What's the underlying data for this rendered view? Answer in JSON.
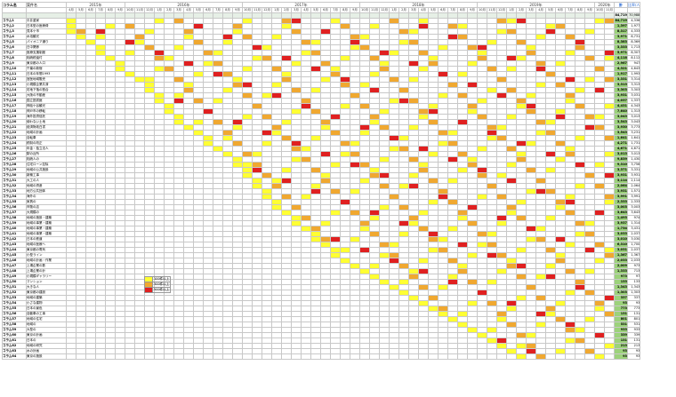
{
  "headers": {
    "code": "コラム名",
    "name": "案件名",
    "total": "計",
    "ratio": "比率/人"
  },
  "years": [
    {
      "label": "2015年",
      "span": 6
    },
    {
      "label": "2016年",
      "span": 12
    },
    {
      "label": "2017年",
      "span": 12
    },
    {
      "label": "2018年",
      "span": 12
    },
    {
      "label": "2019年",
      "span": 12
    },
    {
      "label": "2020年",
      "span": 2
    }
  ],
  "months": [
    "4月",
    "5月",
    "6月",
    "7月",
    "8月",
    "9月",
    "10月",
    "11月",
    "12月",
    "1月",
    "2月",
    "3月",
    "4月",
    "5月",
    "6月",
    "7月",
    "8月",
    "9月",
    "10月",
    "11月",
    "12月",
    "1月",
    "2月",
    "3月",
    "4月",
    "5月",
    "6月",
    "7月",
    "8月",
    "9月",
    "10月",
    "11月",
    "12月",
    "1月",
    "2月",
    "3月",
    "4月",
    "5月",
    "6月",
    "7月",
    "8月",
    "9月",
    "10月",
    "11月",
    "12月",
    "1月",
    "2月",
    "3月",
    "4月",
    "5月",
    "6月",
    "7月",
    "8月",
    "9月",
    "10月",
    "11月"
  ],
  "total_row": {
    "label": "",
    "total": "84,719",
    "ratio": "70,988"
  },
  "rows": [
    {
      "code": "コラム1",
      "name": "平井重家",
      "total": "84,719",
      "ratio": "4,336",
      "start": 0
    },
    {
      "code": "コラム2",
      "name": "日本型の医療費",
      "total": "1,397",
      "ratio": "1,977",
      "start": 0
    },
    {
      "code": "コラム3",
      "name": "見本ケ市",
      "total": "8,317",
      "ratio": "4,333",
      "start": 0
    },
    {
      "code": "コラム4",
      "name": "水泡観光",
      "total": "3,971",
      "ratio": "8,731",
      "start": 1
    },
    {
      "code": "コラム5",
      "name": "パイオニア通り",
      "total": "8,383",
      "ratio": "8,369",
      "start": 2
    },
    {
      "code": "コラム6",
      "name": "日中関係",
      "total": "3,333",
      "ratio": "1,713",
      "start": 3
    },
    {
      "code": "コラム7",
      "name": "医療支援制度",
      "total": "5,971",
      "ratio": "8,307",
      "start": 3
    },
    {
      "code": "コラム8",
      "name": "相続税還付",
      "total": "4,118",
      "ratio": "8,112",
      "start": 4
    },
    {
      "code": "コラム9",
      "name": "東京都の人口",
      "total": "2,967",
      "ratio": "947",
      "start": 5
    },
    {
      "code": "コラム10",
      "name": "千葉の新宿",
      "total": "4,321",
      "ratio": "4,643",
      "start": 5
    },
    {
      "code": "コラム11",
      "name": "日本の年間1993",
      "total": "1,917",
      "ratio": "1,993",
      "start": 6
    },
    {
      "code": "コラム12",
      "name": "宮医地域販売",
      "total": "3,331",
      "ratio": "3,314",
      "start": 7
    },
    {
      "code": "コラム13",
      "name": "小規模企業共済",
      "total": "3,313",
      "ratio": "3,313",
      "start": 8
    },
    {
      "code": "コラム14",
      "name": "宅地下落の割合",
      "total": "3,303",
      "ratio": "3,303",
      "start": 8
    },
    {
      "code": "コラム15",
      "name": "大阪の不動産",
      "total": "3,931",
      "ratio": "3,031",
      "start": 9
    },
    {
      "code": "コラム16",
      "name": "国立図書館",
      "total": "4,037",
      "ratio": "1,337",
      "start": 9
    },
    {
      "code": "コラム17",
      "name": "神話ケ谷観光",
      "total": "4,431",
      "ratio": "4,343",
      "start": 10
    },
    {
      "code": "コラム18",
      "name": "神戸市の移転",
      "total": "7,640",
      "ratio": "1,313",
      "start": 10
    },
    {
      "code": "コラム19",
      "name": "海外投資信託",
      "total": "3,043",
      "ratio": "3,013",
      "start": 11
    },
    {
      "code": "コラム20",
      "name": "使わない土地",
      "total": "3,543",
      "ratio": "3,043",
      "start": 11
    },
    {
      "code": "コラム21",
      "name": "経済財政白書",
      "total": "3,930",
      "ratio": "3,773",
      "start": 12
    },
    {
      "code": "コラム22",
      "name": "地域の計画",
      "total": "3,543",
      "ratio": "3,231",
      "start": 13
    },
    {
      "code": "コラム23",
      "name": "自転車",
      "total": "1,641",
      "ratio": "1,641",
      "start": 14
    },
    {
      "code": "コラム24",
      "name": "税制の改正",
      "total": "4,271",
      "ratio": "1,731",
      "start": 14
    },
    {
      "code": "コラム25",
      "name": "年金・独立法人",
      "total": "4,671",
      "ratio": "4,671",
      "start": 15
    },
    {
      "code": "コラム26",
      "name": "駅の近所",
      "total": "3,013",
      "ratio": "3,013",
      "start": 16
    },
    {
      "code": "コラム27",
      "name": "相続人の",
      "total": "9,839",
      "ratio": "1,430",
      "start": 17
    },
    {
      "code": "コラム28",
      "name": "住宅ローン控除",
      "total": "9,310",
      "ratio": "3,756",
      "start": 17
    },
    {
      "code": "コラム29",
      "name": "地域の公共施設",
      "total": "3,371",
      "ratio": "3,331",
      "start": 18
    },
    {
      "code": "コラム30",
      "name": "新築工事",
      "total": "3,931",
      "ratio": "3,931",
      "start": 18
    },
    {
      "code": "コラム31",
      "name": "大工の人",
      "total": "3,114",
      "ratio": "2,114",
      "start": 19
    },
    {
      "code": "コラム32",
      "name": "地域の資産",
      "total": "2,064",
      "ratio": "2,064",
      "start": 19
    },
    {
      "code": "コラム33",
      "name": "地方公共団体",
      "total": "3,931",
      "ratio": "1,571",
      "start": 20
    },
    {
      "code": "コラム34",
      "name": "海外の",
      "total": "3,991",
      "ratio": "3,991",
      "start": 20
    },
    {
      "code": "コラム35",
      "name": "家具の",
      "total": "2,333",
      "ratio": "2,333",
      "start": 21
    },
    {
      "code": "コラム36",
      "name": "市販の店",
      "total": "3,003",
      "ratio": "3,003",
      "start": 21
    },
    {
      "code": "コラム37",
      "name": "大規模の",
      "total": "3,643",
      "ratio": "3,643",
      "start": 22
    },
    {
      "code": "コラム38",
      "name": "地域の施設・建築",
      "total": "1,493",
      "ratio": "974",
      "start": 23
    },
    {
      "code": "コラム39",
      "name": "地域の事業・建築",
      "total": "3,937",
      "ratio": "1,314",
      "start": 23
    },
    {
      "code": "コラム40",
      "name": "地域の事業・建築",
      "total": "1,734",
      "ratio": "3,431",
      "start": 24
    },
    {
      "code": "コラム41",
      "name": "地域の事業・建築",
      "total": "3,033",
      "ratio": "2,037",
      "start": 25
    },
    {
      "code": "コラム42",
      "name": "日本の鉄道",
      "total": "3,010",
      "ratio": "3,030",
      "start": 25
    },
    {
      "code": "コラム43",
      "name": "地域の医療へ",
      "total": "6,310",
      "ratio": "1,700",
      "start": 26
    },
    {
      "code": "コラム44",
      "name": "東京都の電気",
      "total": "3,031",
      "ratio": "2,037",
      "start": 27
    },
    {
      "code": "コラム45",
      "name": "小型ライン",
      "total": "1,367",
      "ratio": "1,367",
      "start": 27
    },
    {
      "code": "コラム46",
      "name": "地域の計画・作業",
      "total": "2,033",
      "ratio": "2,033",
      "start": 28
    },
    {
      "code": "コラム47",
      "name": "上場企業の数",
      "total": "2,009",
      "ratio": "973",
      "start": 29
    },
    {
      "code": "コラム48",
      "name": "上場企業の計",
      "total": "1,333",
      "ratio": "713",
      "start": 30
    },
    {
      "code": "コラム49",
      "name": "小規模ギャラリー",
      "total": "973",
      "ratio": "97",
      "start": 31
    },
    {
      "code": "コラム50",
      "name": "マンション",
      "total": "133",
      "ratio": "133",
      "start": 32
    },
    {
      "code": "コラム51",
      "name": "大きな人",
      "total": "1,343",
      "ratio": "1,343",
      "start": 33
    },
    {
      "code": "コラム52",
      "name": "東京都の建設",
      "total": "1,303",
      "ratio": "1,303",
      "start": 34
    },
    {
      "code": "コラム53",
      "name": "地域の建築",
      "total": "337",
      "ratio": "337",
      "start": 35
    },
    {
      "code": "コラム54",
      "name": "小さな建物",
      "total": "93",
      "ratio": "93",
      "start": 36
    },
    {
      "code": "コラム55",
      "name": "日本の景色",
      "total": "773",
      "ratio": "773",
      "start": 37
    },
    {
      "code": "コラム56",
      "name": "自動車の工事",
      "total": "131",
      "ratio": "131",
      "start": 38
    },
    {
      "code": "コラム57",
      "name": "地域の住宅",
      "total": "801",
      "ratio": "801",
      "start": 39
    },
    {
      "code": "コラム58",
      "name": "地域の",
      "total": "531",
      "ratio": "531",
      "start": 40
    },
    {
      "code": "コラム59",
      "name": "大型の",
      "total": "933",
      "ratio": "933",
      "start": 41
    },
    {
      "code": "コラム60",
      "name": "東京の計画",
      "total": "339",
      "ratio": "339",
      "start": 42
    },
    {
      "code": "コラム61",
      "name": "日本の",
      "total": "131",
      "ratio": "131",
      "start": 43
    },
    {
      "code": "コラム62",
      "name": "地域の研究",
      "total": "213",
      "ratio": "213",
      "start": 44
    },
    {
      "code": "コラム63",
      "name": "水の計画",
      "total": "93",
      "ratio": "93",
      "start": 45
    },
    {
      "code": "コラム64",
      "name": "東京の施設",
      "total": "93",
      "ratio": "93",
      "start": 46
    }
  ],
  "legend": [
    {
      "label": "100件以上",
      "color": "#ffff33"
    },
    {
      "label": "300件以上",
      "color": "#f0a830"
    },
    {
      "label": "500件以上",
      "color": "#e02020"
    }
  ]
}
